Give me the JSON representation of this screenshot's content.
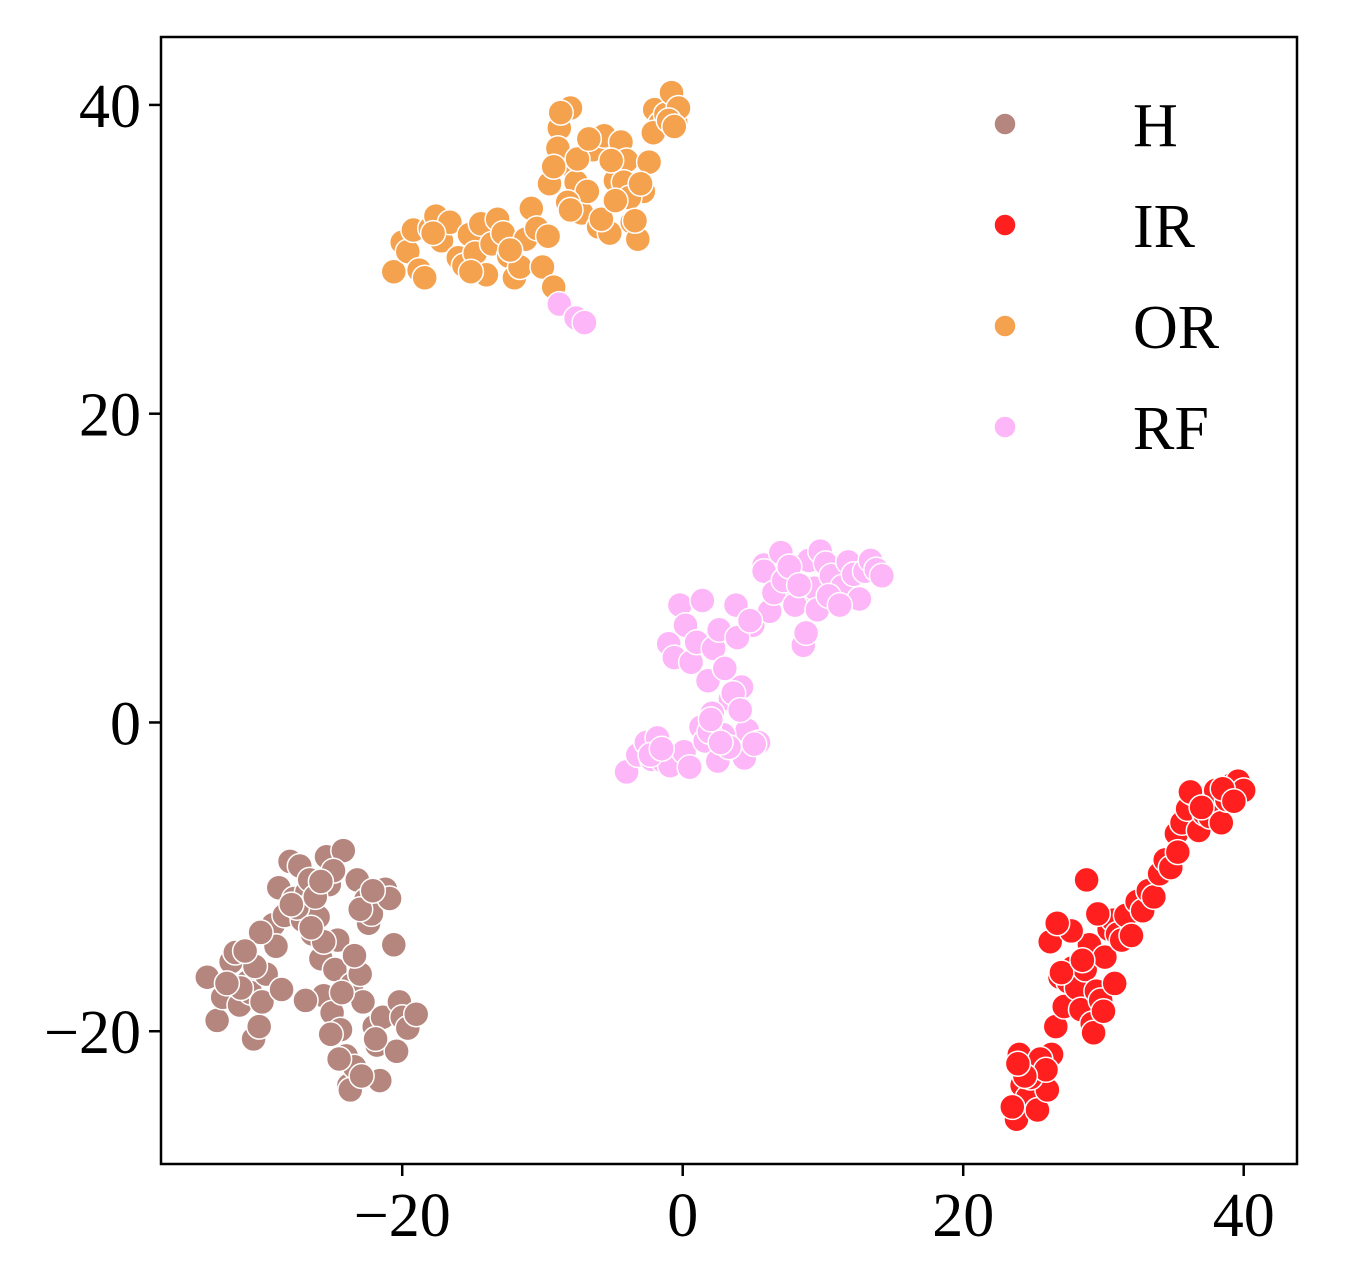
{
  "chart_data": {
    "type": "scatter",
    "title": "",
    "xlabel": "",
    "ylabel": "",
    "xlim": [
      -37.2,
      43.8
    ],
    "ylim": [
      -28.6,
      44.4
    ],
    "xticks": [
      -20,
      0,
      20,
      40
    ],
    "yticks": [
      -20,
      0,
      20,
      40
    ],
    "xtick_labels": [
      "−20",
      "0",
      "20",
      "40"
    ],
    "ytick_labels": [
      "−20",
      "0",
      "20",
      "40"
    ],
    "grid": false,
    "legend_position": "top-right",
    "series": [
      {
        "name": "H",
        "color": "#b4867e",
        "x": [
          -33.9,
          -33.2,
          -32.8,
          -32.2,
          -31.9,
          -31.6,
          -31.0,
          -30.8,
          -30.6,
          -30.2,
          -30.0,
          -29.7,
          -29.2,
          -29.0,
          -28.8,
          -28.4,
          -28.0,
          -27.7,
          -27.3,
          -27.1,
          -26.8,
          -26.6,
          -26.4,
          -26.0,
          -25.8,
          -25.6,
          -25.4,
          -25.2,
          -25.0,
          -24.8,
          -24.6,
          -24.4,
          -24.2,
          -24.0,
          -23.8,
          -23.6,
          -23.4,
          -23.2,
          -23.0,
          -22.8,
          -22.6,
          -22.4,
          -22.2,
          -22.0,
          -21.8,
          -21.6,
          -21.4,
          -21.2,
          -20.9,
          -20.6,
          -20.4,
          -20.2,
          -20.0,
          -19.6,
          -19.0,
          -31.5,
          -30.5,
          -27.5,
          -26.2,
          -25.1,
          -24.5,
          -23.7,
          -22.9,
          -21.9,
          -24.3,
          -23.4,
          -25.6,
          -26.9,
          -28.6,
          -30.1,
          -31.2,
          -32.5,
          -23.0,
          -22.1,
          -24.9,
          -25.8,
          -26.5,
          -27.9
        ],
        "y": [
          -16.5,
          -19.3,
          -17.8,
          -15.5,
          -14.9,
          -18.3,
          -16.8,
          -17.5,
          -20.5,
          -19.7,
          -18.1,
          -16.3,
          -13.1,
          -14.5,
          -10.7,
          -12.5,
          -9.0,
          -11.4,
          -9.3,
          -12.8,
          -11.0,
          -10.2,
          -13.7,
          -12.6,
          -15.3,
          -17.7,
          -8.7,
          -10.5,
          -18.8,
          -16.0,
          -14.1,
          -19.9,
          -8.3,
          -21.6,
          -23.5,
          -17.0,
          -22.3,
          -10.2,
          -16.3,
          -18.1,
          -11.5,
          -13.0,
          -12.4,
          -19.7,
          -20.9,
          -23.2,
          -19.1,
          -10.8,
          -11.4,
          -14.4,
          -21.3,
          -18.1,
          -19.1,
          -19.8,
          -18.9,
          -17.2,
          -15.8,
          -12.0,
          -11.3,
          -20.2,
          -21.8,
          -23.8,
          -22.9,
          -20.5,
          -17.5,
          -15.1,
          -14.2,
          -18.0,
          -17.3,
          -13.6,
          -14.8,
          -16.9,
          -12.1,
          -10.9,
          -9.6,
          -10.3,
          -13.3,
          -11.8
        ]
      },
      {
        "name": "IR",
        "color": "#ff1f1f",
        "x": [
          23.8,
          24.2,
          24.6,
          25.0,
          25.3,
          25.7,
          26.0,
          26.3,
          26.6,
          26.9,
          27.2,
          27.5,
          27.8,
          28.1,
          28.4,
          28.7,
          29.0,
          29.2,
          29.5,
          29.8,
          30.1,
          30.4,
          30.7,
          31.0,
          31.3,
          31.6,
          32.0,
          32.4,
          32.8,
          33.2,
          33.6,
          34.0,
          34.4,
          34.8,
          35.2,
          35.6,
          36.0,
          36.4,
          36.8,
          37.2,
          37.6,
          38.0,
          38.4,
          38.8,
          39.2,
          39.6,
          40.0,
          23.5,
          24.0,
          24.8,
          25.5,
          26.2,
          27.0,
          27.7,
          28.5,
          29.3,
          30.0,
          30.8,
          36.2,
          37.0,
          38.5,
          39.3,
          35.3,
          25.9,
          24.4,
          23.9,
          26.7,
          28.8,
          29.6
        ],
        "y": [
          -25.7,
          -23.5,
          -24.3,
          -22.5,
          -25.1,
          -23.1,
          -23.8,
          -21.5,
          -19.7,
          -16.5,
          -18.4,
          -16.8,
          -15.9,
          -17.2,
          -18.6,
          -16.0,
          -14.4,
          -19.5,
          -17.4,
          -18.0,
          -15.2,
          -13.4,
          -12.8,
          -13.7,
          -14.1,
          -12.5,
          -13.8,
          -11.6,
          -12.2,
          -10.9,
          -11.3,
          -9.8,
          -8.9,
          -9.4,
          -7.2,
          -6.5,
          -5.6,
          -4.6,
          -7.0,
          -5.9,
          -6.1,
          -4.4,
          -6.5,
          -5.0,
          -4.0,
          -3.8,
          -4.4,
          -24.9,
          -21.5,
          -23.0,
          -21.8,
          -14.2,
          -16.2,
          -13.5,
          -15.4,
          -20.1,
          -18.7,
          -16.9,
          -4.5,
          -5.5,
          -4.3,
          -5.1,
          -8.4,
          -22.5,
          -22.9,
          -22.1,
          -13.0,
          -10.2,
          -12.4
        ]
      },
      {
        "name": "OR",
        "color": "#f5a24f",
        "x": [
          -20.6,
          -20.0,
          -19.6,
          -19.2,
          -18.8,
          -18.4,
          -18.0,
          -17.6,
          -17.2,
          -16.6,
          -16.0,
          -15.6,
          -15.2,
          -14.8,
          -14.4,
          -14.0,
          -13.6,
          -13.2,
          -12.8,
          -12.4,
          -12.0,
          -11.6,
          -11.2,
          -10.8,
          -10.4,
          -10.0,
          -9.6,
          -9.2,
          -8.8,
          -8.4,
          -8.0,
          -7.6,
          -7.2,
          -6.8,
          -6.4,
          -6.0,
          -5.6,
          -5.2,
          -4.8,
          -4.4,
          -4.0,
          -3.6,
          -3.2,
          -2.8,
          -2.4,
          -2.0,
          -1.6,
          -1.2,
          -0.8,
          -0.5,
          -0.3,
          -9.5,
          -8.9,
          -8.2,
          -7.5,
          -5.8,
          -4.2,
          -3.8,
          -9.2,
          -8.7,
          -6.7,
          -5.1,
          -3.4,
          -2.1,
          -1.0,
          -0.6,
          -4.8,
          -3.0,
          -8.0,
          -12.3,
          -15.1,
          -17.8
        ],
        "y": [
          29.2,
          31.1,
          30.5,
          31.9,
          29.3,
          28.8,
          32.0,
          32.8,
          31.2,
          32.4,
          30.1,
          29.6,
          31.6,
          30.4,
          32.3,
          29.0,
          31.0,
          32.6,
          31.7,
          30.2,
          28.8,
          29.5,
          31.3,
          33.3,
          32.0,
          29.5,
          31.5,
          28.2,
          38.5,
          36.2,
          39.8,
          35.0,
          33.0,
          34.4,
          37.1,
          32.1,
          38.0,
          31.7,
          35.1,
          37.6,
          36.4,
          32.4,
          31.3,
          34.4,
          36.3,
          39.7,
          38.8,
          39.4,
          40.8,
          38.9,
          39.8,
          34.9,
          37.2,
          33.7,
          36.5,
          32.6,
          35.0,
          34.0,
          36.0,
          39.5,
          37.8,
          36.4,
          32.5,
          38.2,
          39.0,
          38.6,
          33.8,
          34.9,
          33.2,
          30.6,
          29.2,
          31.7
        ]
      },
      {
        "name": "RF",
        "color": "#fdb6f8",
        "x": [
          -4.0,
          -3.2,
          -2.6,
          -2.2,
          -1.8,
          -1.4,
          -1.0,
          -0.6,
          -0.2,
          0.2,
          0.6,
          1.0,
          1.4,
          1.8,
          2.2,
          2.6,
          3.0,
          3.4,
          3.8,
          4.2,
          4.6,
          5.0,
          5.4,
          5.8,
          6.2,
          6.6,
          7.0,
          7.4,
          7.8,
          8.2,
          8.6,
          9.0,
          9.4,
          9.8,
          10.2,
          10.6,
          11.0,
          11.4,
          11.8,
          12.2,
          12.6,
          13.0,
          13.4,
          13.8,
          14.2,
          -0.9,
          0.1,
          1.3,
          2.1,
          2.9,
          3.6,
          4.4,
          5.1,
          5.8,
          6.5,
          7.2,
          8.0,
          8.8,
          9.6,
          10.4,
          11.2,
          1.6,
          2.5,
          3.3,
          4.1,
          1.9,
          2.7,
          3.9,
          4.8,
          -8.8,
          -7.6,
          -7.0,
          -2.3,
          -1.5,
          0.5,
          2.0,
          7.6,
          8.3
        ],
        "y": [
          -3.2,
          -2.1,
          -1.3,
          -2.4,
          -1.0,
          -2.5,
          5.1,
          4.2,
          7.6,
          6.3,
          3.9,
          5.2,
          7.9,
          2.7,
          4.8,
          6.0,
          3.5,
          1.5,
          7.6,
          2.3,
          -0.5,
          6.3,
          -1.3,
          10.2,
          7.2,
          8.8,
          11.0,
          8.6,
          9.1,
          8.0,
          5.0,
          10.5,
          8.7,
          11.1,
          10.3,
          9.5,
          8.1,
          8.8,
          10.4,
          9.6,
          8.0,
          9.8,
          10.5,
          9.9,
          9.5,
          -2.8,
          -1.9,
          -0.3,
          0.6,
          -0.8,
          1.9,
          -2.3,
          -1.4,
          9.8,
          8.4,
          9.2,
          7.6,
          5.8,
          7.3,
          8.2,
          7.6,
          -1.2,
          -2.5,
          -1.6,
          0.8,
          -0.6,
          -1.3,
          5.5,
          6.6,
          27.1,
          26.2,
          25.9,
          -2.1,
          -1.7,
          -2.9,
          0.2,
          10.1,
          8.9
        ]
      }
    ]
  }
}
